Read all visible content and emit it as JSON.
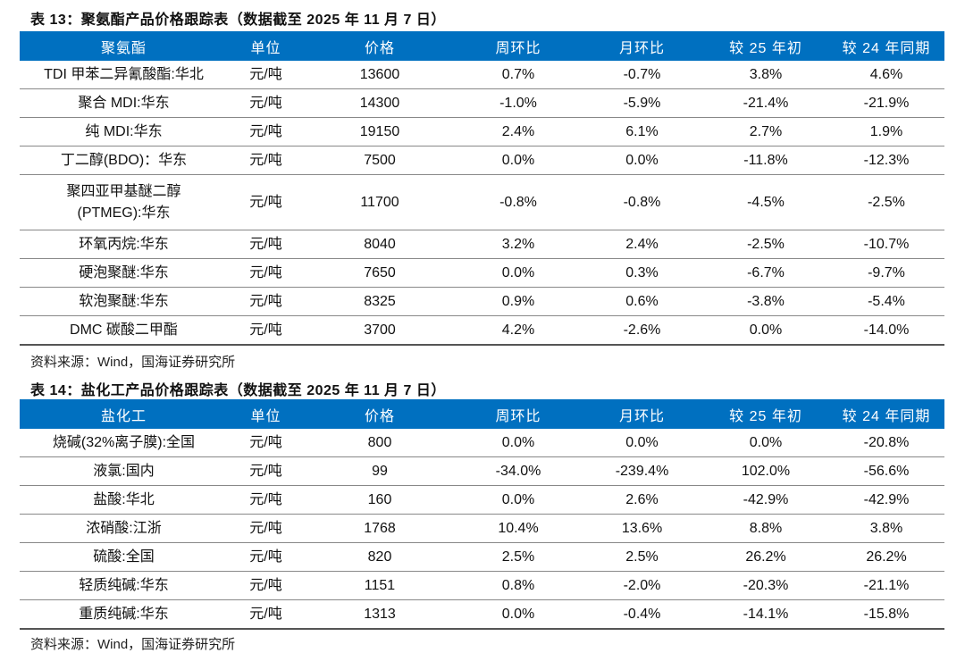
{
  "table13": {
    "title": "表 13：聚氨酯产品价格跟踪表（数据截至 2025 年 11 月 7 日）",
    "headers": [
      "聚氨酯",
      "单位",
      "价格",
      "周环比",
      "月环比",
      "较 25 年初",
      "较 24 年同期"
    ],
    "rows": [
      [
        "TDI 甲苯二异氰酸酯:华北",
        "元/吨",
        "13600",
        "0.7%",
        "-0.7%",
        "3.8%",
        "4.6%"
      ],
      [
        "聚合 MDI:华东",
        "元/吨",
        "14300",
        "-1.0%",
        "-5.9%",
        "-21.4%",
        "-21.9%"
      ],
      [
        "纯 MDI:华东",
        "元/吨",
        "19150",
        "2.4%",
        "6.1%",
        "2.7%",
        "1.9%"
      ],
      [
        "丁二醇(BDO)：华东",
        "元/吨",
        "7500",
        "0.0%",
        "0.0%",
        "-11.8%",
        "-12.3%"
      ],
      [
        "聚四亚甲基醚二醇(PTMEG):华东",
        "元/吨",
        "11700",
        "-0.8%",
        "-0.8%",
        "-4.5%",
        "-2.5%"
      ],
      [
        "环氧丙烷:华东",
        "元/吨",
        "8040",
        "3.2%",
        "2.4%",
        "-2.5%",
        "-10.7%"
      ],
      [
        "硬泡聚醚:华东",
        "元/吨",
        "7650",
        "0.0%",
        "0.3%",
        "-6.7%",
        "-9.7%"
      ],
      [
        "软泡聚醚:华东",
        "元/吨",
        "8325",
        "0.9%",
        "0.6%",
        "-3.8%",
        "-5.4%"
      ],
      [
        "DMC 碳酸二甲酯",
        "元/吨",
        "3700",
        "4.2%",
        "-2.6%",
        "0.0%",
        "-14.0%"
      ]
    ],
    "source": "资料来源：Wind，国海证券研究所"
  },
  "table14": {
    "title": "表 14：盐化工产品价格跟踪表（数据截至 2025 年 11 月 7 日）",
    "headers": [
      "盐化工",
      "单位",
      "价格",
      "周环比",
      "月环比",
      "较 25 年初",
      "较 24 年同期"
    ],
    "rows": [
      [
        "烧碱(32%离子膜):全国",
        "元/吨",
        "800",
        "0.0%",
        "0.0%",
        "0.0%",
        "-20.8%"
      ],
      [
        "液氯:国内",
        "元/吨",
        "99",
        "-34.0%",
        "-239.4%",
        "102.0%",
        "-56.6%"
      ],
      [
        "盐酸:华北",
        "元/吨",
        "160",
        "0.0%",
        "2.6%",
        "-42.9%",
        "-42.9%"
      ],
      [
        "浓硝酸:江浙",
        "元/吨",
        "1768",
        "10.4%",
        "13.6%",
        "8.8%",
        "3.8%"
      ],
      [
        "硫酸:全国",
        "元/吨",
        "820",
        "2.5%",
        "2.5%",
        "26.2%",
        "26.2%"
      ],
      [
        "轻质纯碱:华东",
        "元/吨",
        "1151",
        "0.8%",
        "-2.0%",
        "-20.3%",
        "-21.1%"
      ],
      [
        "重质纯碱:华东",
        "元/吨",
        "1313",
        "0.0%",
        "-0.4%",
        "-14.1%",
        "-15.8%"
      ]
    ],
    "source": "资料来源：Wind，国海证券研究所"
  },
  "colors": {
    "header_bg": "#0070C0",
    "header_text": "#FFFFFF"
  }
}
